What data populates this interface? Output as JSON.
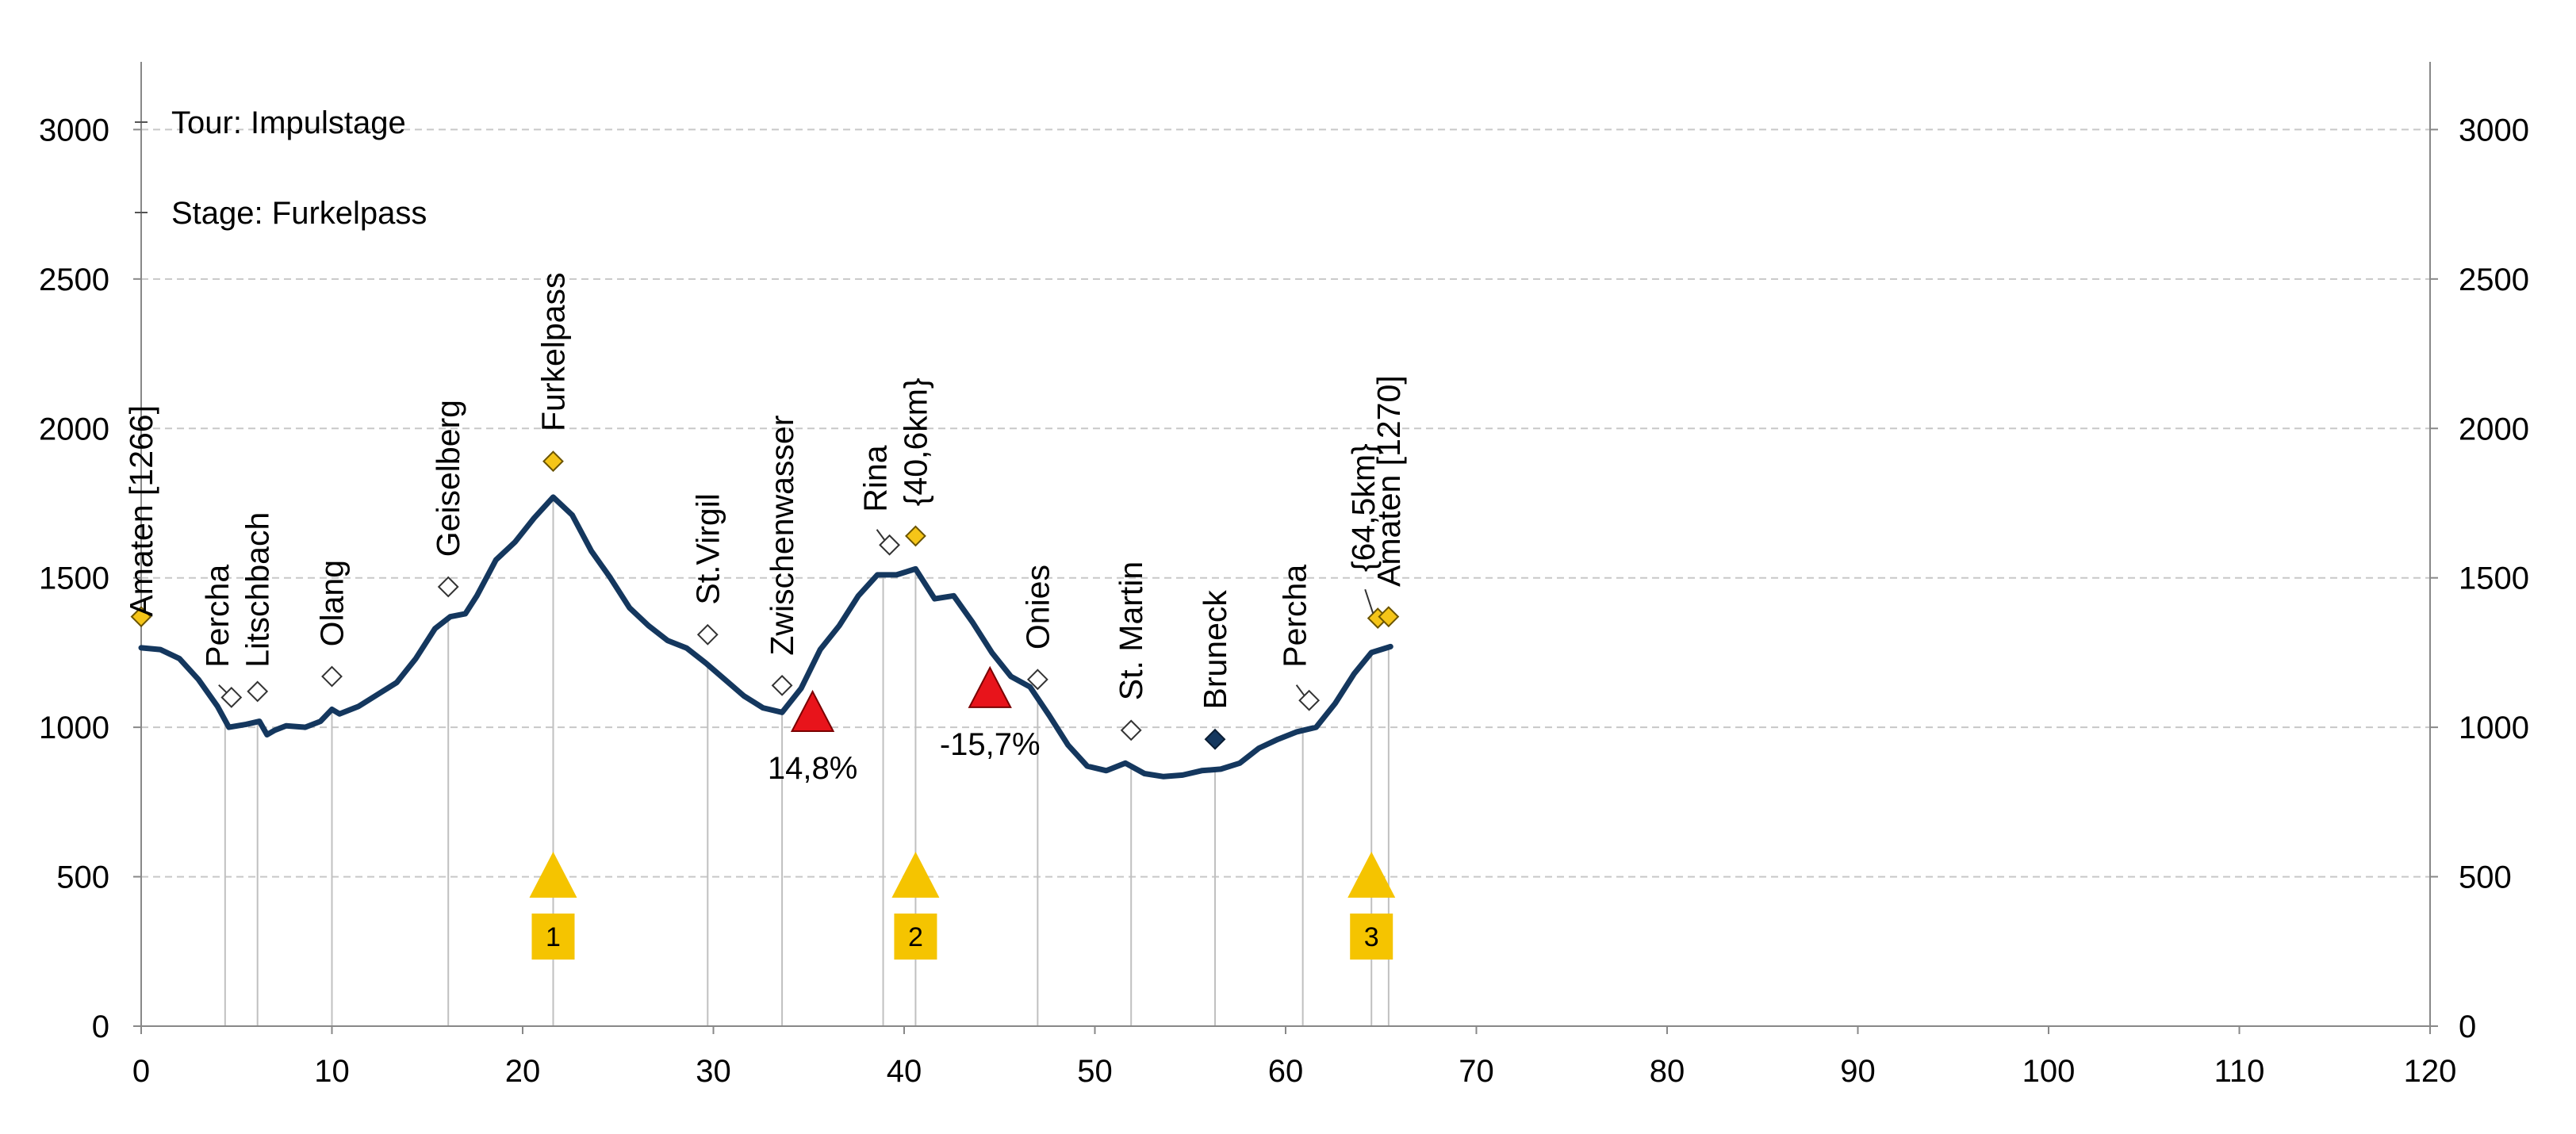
{
  "chart_data": {
    "type": "area",
    "title": "",
    "info": {
      "tour": "Tour: Impulstage",
      "stage": "Stage: Furkelpass"
    },
    "xlim": [
      0,
      120
    ],
    "ylim": [
      0,
      3200
    ],
    "x_ticks": [
      0,
      10,
      20,
      30,
      40,
      50,
      60,
      70,
      80,
      90,
      100,
      110,
      120
    ],
    "y_ticks": [
      0,
      500,
      1000,
      1500,
      2000,
      2500,
      3000
    ],
    "profile": {
      "x": [
        0,
        1,
        2,
        3,
        4,
        4.6,
        5.5,
        6.2,
        6.6,
        7,
        7.6,
        8.6,
        9.4,
        10,
        10.4,
        11.4,
        12.4,
        13.4,
        14.4,
        15.4,
        16.2,
        17,
        17.6,
        18.6,
        19.6,
        20.6,
        21.6,
        22.6,
        23.6,
        24.6,
        25.6,
        26.6,
        27.6,
        28.6,
        29.6,
        30.6,
        31.6,
        32.6,
        33.6,
        34.6,
        35.6,
        36.6,
        37.6,
        38.6,
        39.6,
        40.6,
        41.6,
        42.6,
        43.6,
        44.6,
        45.6,
        46.6,
        47.6,
        48.6,
        49.6,
        50.6,
        51.6,
        52.6,
        53.6,
        54.6,
        55.6,
        56.6,
        57.6,
        58.6,
        59.6,
        60.6,
        61.6,
        62.6,
        63.6,
        64.5,
        65.5
      ],
      "y": [
        1266,
        1260,
        1230,
        1160,
        1070,
        1000,
        1010,
        1020,
        975,
        990,
        1005,
        1000,
        1020,
        1060,
        1045,
        1070,
        1110,
        1150,
        1230,
        1330,
        1370,
        1380,
        1440,
        1560,
        1620,
        1700,
        1770,
        1710,
        1590,
        1500,
        1400,
        1340,
        1290,
        1265,
        1215,
        1160,
        1105,
        1065,
        1050,
        1130,
        1260,
        1340,
        1440,
        1510,
        1510,
        1530,
        1430,
        1440,
        1350,
        1250,
        1170,
        1135,
        1040,
        940,
        870,
        855,
        880,
        845,
        835,
        840,
        855,
        860,
        880,
        930,
        960,
        985,
        1000,
        1080,
        1180,
        1250,
        1270
      ]
    },
    "waypoints": [
      {
        "name": "Amaten [1266]",
        "x": 0,
        "y": 1370,
        "marker": "diamond-yellow",
        "label_y": 1370,
        "leader": false
      },
      {
        "name": "Percha",
        "x": 4.4,
        "y": 1100,
        "marker": "diamond-white",
        "label_y": 1200,
        "leader": true
      },
      {
        "name": "Litschbach",
        "x": 6.1,
        "y": 1120,
        "marker": "diamond-white",
        "label_y": 1200,
        "leader": false
      },
      {
        "name": "Olang",
        "x": 10,
        "y": 1170,
        "marker": "diamond-white",
        "label_y": 1270,
        "leader": false
      },
      {
        "name": "Geiselberg",
        "x": 16.1,
        "y": 1470,
        "marker": "diamond-white",
        "label_y": 1570,
        "leader": false
      },
      {
        "name": "Furkelpass",
        "x": 21.6,
        "y": 1890,
        "marker": "diamond-yellow",
        "label_y": 1990,
        "leader": false
      },
      {
        "name": "St.Virgil",
        "x": 29.7,
        "y": 1310,
        "marker": "diamond-white",
        "label_y": 1410,
        "leader": false
      },
      {
        "name": "Zwischenwasser",
        "x": 33.6,
        "y": 1140,
        "marker": "diamond-white",
        "label_y": 1240,
        "leader": false
      },
      {
        "name": "Rina",
        "x": 38.9,
        "y": 1610,
        "marker": "diamond-white",
        "label_y": 1720,
        "leader": true
      },
      {
        "name": "{40,6km}",
        "x": 40.6,
        "y": 1640,
        "marker": "diamond-yellow",
        "label_y": 1740,
        "leader": false
      },
      {
        "name": "Onies",
        "x": 47,
        "y": 1160,
        "marker": "diamond-white",
        "label_y": 1260,
        "leader": false
      },
      {
        "name": "St. Martin",
        "x": 51.9,
        "y": 990,
        "marker": "diamond-white",
        "label_y": 1090,
        "leader": false
      },
      {
        "name": "Bruneck",
        "x": 56.3,
        "y": 960,
        "marker": "diamond-navy",
        "label_y": 1060,
        "leader": false
      },
      {
        "name": "Percha",
        "x": 60.9,
        "y": 1090,
        "marker": "diamond-white",
        "label_y": 1200,
        "leader": true
      },
      {
        "name": "{64,5km}",
        "x": 64.5,
        "y": 1365,
        "marker": "diamond-yellow",
        "label_y": 1520,
        "leader": true
      },
      {
        "name": "Amaten [1270]",
        "x": 65.4,
        "y": 1370,
        "marker": "diamond-yellow",
        "label_y": 1470,
        "leader": false
      }
    ],
    "gradients": [
      {
        "label": "14,8%",
        "x": 35.2,
        "y": 1040
      },
      {
        "label": "-15,7%",
        "x": 44.5,
        "y": 1120
      }
    ],
    "climbs": [
      {
        "number": "1",
        "x": 21.6
      },
      {
        "number": "2",
        "x": 40.6
      },
      {
        "number": "3",
        "x": 64.5
      }
    ],
    "colors": {
      "profile": "#14375e",
      "gridline": "#c8c8c8",
      "marker_yellow": "#f5c518",
      "marker_navy": "#14375e",
      "gradient_red": "#e8141b",
      "climb_yellow": "#f5c400",
      "axis": "#888888",
      "dropline": "#c0c0c0"
    }
  }
}
